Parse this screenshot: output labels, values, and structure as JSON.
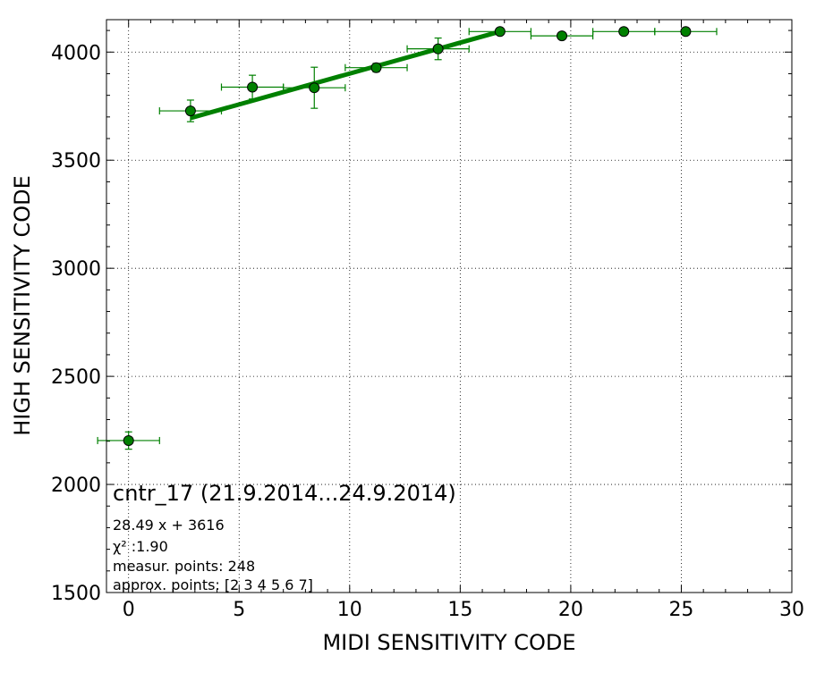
{
  "chart_data": {
    "type": "scatter",
    "title": "cntr_17 (21.9.2014...24.9.2014)",
    "xlabel": "MIDI SENSITIVITY CODE",
    "ylabel": "HIGH SENSITIVITY CODE",
    "xlim": [
      -1,
      30
    ],
    "ylim": [
      1500,
      4150
    ],
    "xticks": [
      0,
      5,
      10,
      15,
      20,
      25,
      30
    ],
    "yticks": [
      1500,
      2000,
      2500,
      3000,
      3500,
      4000
    ],
    "grid": true,
    "series": [
      {
        "type": "errorbar",
        "color": "#008000",
        "points": [
          {
            "x": 0,
            "y": 2203,
            "xerr": 1.4,
            "yerr": 40
          },
          {
            "x": 2.8,
            "y": 3728,
            "xerr": 1.4,
            "yerr": 50
          },
          {
            "x": 5.6,
            "y": 3838,
            "xerr": 1.4,
            "yerr": 55
          },
          {
            "x": 8.4,
            "y": 3835,
            "xerr": 1.4,
            "yerr": 95
          },
          {
            "x": 11.2,
            "y": 3928,
            "xerr": 1.4,
            "yerr": 20
          },
          {
            "x": 14,
            "y": 4015,
            "xerr": 1.4,
            "yerr": 50
          },
          {
            "x": 16.8,
            "y": 4095,
            "xerr": 1.4,
            "yerr": 0
          },
          {
            "x": 19.6,
            "y": 4075,
            "xerr": 1.4,
            "yerr": 0
          },
          {
            "x": 22.4,
            "y": 4095,
            "xerr": 1.4,
            "yerr": 0
          },
          {
            "x": 25.2,
            "y": 4095,
            "xerr": 1.4,
            "yerr": 0
          }
        ]
      },
      {
        "type": "line",
        "color": "#008000",
        "x": [
          2.8,
          16.8
        ],
        "y": [
          3695,
          4095
        ]
      }
    ],
    "annotations": [
      "28.49 x + 3616",
      "χ² :1.90",
      "measur. points: 248",
      "approx. points: [2 3 4 5 6 7]"
    ]
  }
}
